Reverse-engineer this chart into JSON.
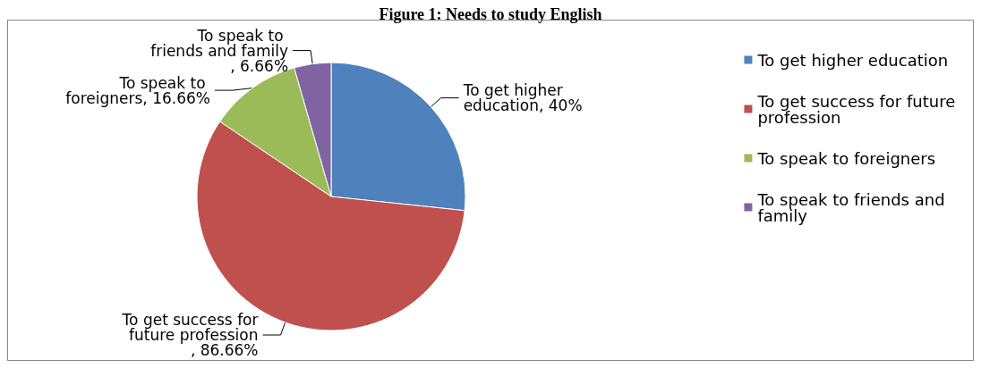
{
  "chart_data": {
    "type": "pie",
    "title": "Figure 1: Needs to study English",
    "categories": [
      "To get higher education",
      "To get success for future profession",
      "To speak to foreigners",
      "To speak to friends and family"
    ],
    "values": [
      40,
      86.66,
      16.66,
      6.66
    ],
    "value_labels": [
      "To get higher education, 40%",
      "To get success for future profession, 86.66%",
      "To speak to foreigners, 16.66%",
      "To speak to friends and family, 6.66%"
    ],
    "colors": [
      "#4f81bd",
      "#c0504d",
      "#9bbb59",
      "#8064a2"
    ],
    "legend": "right"
  }
}
